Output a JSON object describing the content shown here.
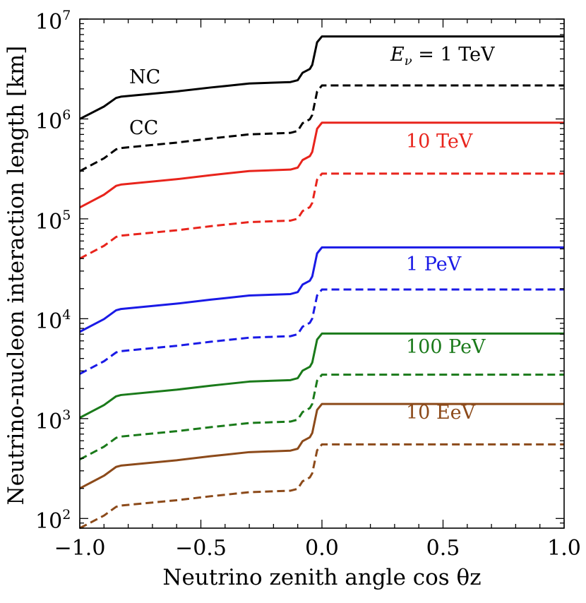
{
  "chart_data": {
    "type": "line",
    "title": "",
    "xlabel": "Neutrino zenith angle cos θz",
    "ylabel": "Neutrino-nucleon interaction length [km]",
    "xlim": [
      -1.0,
      1.0
    ],
    "ylim": [
      80,
      10000000
    ],
    "yscale": "log",
    "grid": false,
    "x_ticks": [
      -1.0,
      -0.5,
      0.0,
      0.5,
      1.0
    ],
    "x_tick_labels": [
      "−1.0",
      "−0.5",
      "0.0",
      "0.5",
      "1.0"
    ],
    "y_ticks": [
      {
        "value": 100,
        "base": "10",
        "exp": "2"
      },
      {
        "value": 1000,
        "base": "10",
        "exp": "3"
      },
      {
        "value": 10000,
        "base": "10",
        "exp": "4"
      },
      {
        "value": 100000,
        "base": "10",
        "exp": "5"
      },
      {
        "value": 1000000,
        "base": "10",
        "exp": "6"
      },
      {
        "value": 10000000,
        "base": "10",
        "exp": "7"
      }
    ],
    "x": [
      -1.0,
      -0.9,
      -0.85,
      -0.83,
      -0.6,
      -0.46,
      -0.4,
      -0.3,
      -0.13,
      -0.1,
      -0.08,
      -0.05,
      -0.04,
      -0.02,
      0.0,
      1.0
    ],
    "shape": [
      0.0,
      0.1375,
      0.233,
      0.247,
      0.305,
      0.3485,
      0.365,
      0.393,
      0.409,
      0.43,
      0.512,
      0.554,
      0.6,
      0.85,
      0.915,
      0.915
    ],
    "series": [
      {
        "name": "NC",
        "energy": "1 TeV",
        "current": "NC",
        "style": "solid",
        "color": "#000000",
        "start": 1000000,
        "plateau": 8000000
      },
      {
        "name": "CC",
        "energy": "1 TeV",
        "current": "CC",
        "style": "dashed",
        "color": "#000000",
        "start": 300000,
        "plateau": 2600000
      },
      {
        "name": "NC",
        "energy": "10 TeV",
        "current": "NC",
        "style": "solid",
        "color": "#e8241c",
        "start": 130000,
        "plateau": 1100000
      },
      {
        "name": "CC",
        "energy": "10 TeV",
        "current": "CC",
        "style": "dashed",
        "color": "#e8241c",
        "start": 40000,
        "plateau": 340000
      },
      {
        "name": "NC",
        "energy": "1 PeV",
        "current": "NC",
        "style": "solid",
        "color": "#1a1ae6",
        "start": 7400,
        "plateau": 62000
      },
      {
        "name": "CC",
        "energy": "1 PeV",
        "current": "CC",
        "style": "dashed",
        "color": "#1a1ae6",
        "start": 2800,
        "plateau": 23500
      },
      {
        "name": "NC",
        "energy": "100 PeV",
        "current": "NC",
        "style": "solid",
        "color": "#1a7a1a",
        "start": 1020,
        "plateau": 8500
      },
      {
        "name": "CC",
        "energy": "100 PeV",
        "current": "CC",
        "style": "dashed",
        "color": "#1a7a1a",
        "start": 390,
        "plateau": 3300
      },
      {
        "name": "NC",
        "energy": "10 EeV",
        "current": "NC",
        "style": "solid",
        "color": "#8c4a1a",
        "start": 200,
        "plateau": 1680
      },
      {
        "name": "CC",
        "energy": "10 EeV",
        "current": "CC",
        "style": "dashed",
        "color": "#8c4a1a",
        "start": 80,
        "plateau": 660
      }
    ],
    "annotations": [
      {
        "text": "NC",
        "color": "#000000"
      },
      {
        "text": "CC",
        "color": "#000000"
      },
      {
        "prefix": "E",
        "sub": "ν",
        "rest": " = 1 TeV",
        "color": "#000000"
      },
      {
        "text": "10 TeV",
        "color": "#e8241c"
      },
      {
        "text": "1 PeV",
        "color": "#1a1ae6"
      },
      {
        "text": "100 PeV",
        "color": "#1a7a1a"
      },
      {
        "text": "10 EeV",
        "color": "#8c4a1a"
      }
    ]
  }
}
